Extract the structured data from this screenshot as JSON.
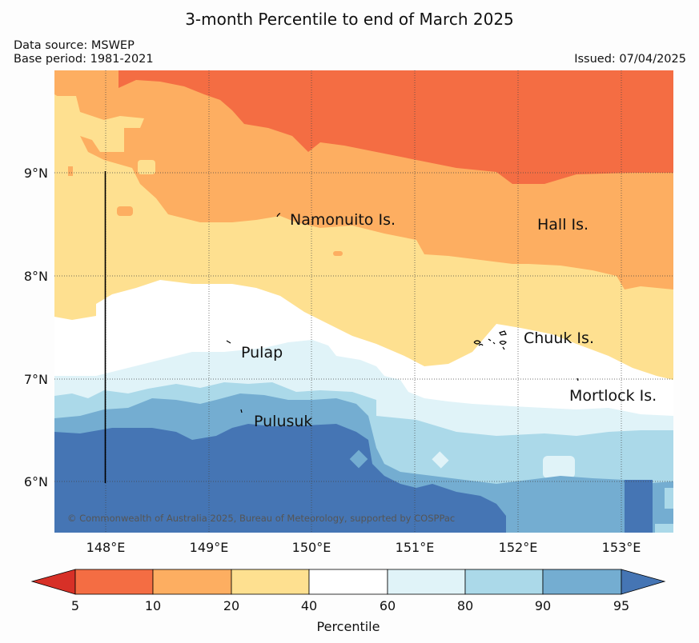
{
  "title": "3-month Percentile to end of March 2025",
  "data_source": "Data source: MSWEP",
  "base_period": "Base period: 1981-2021",
  "issued": "Issued: 07/04/2025",
  "copyright": "© Commonwealth of Australia 2025, Bureau of Meteorology, supported by COSPPac",
  "map": {
    "lon_range": [
      147.5,
      153.5
    ],
    "lat_range": [
      5.5,
      10.0
    ],
    "lat_ticks": [
      "9°N",
      "8°N",
      "7°N",
      "6°N"
    ],
    "lon_ticks": [
      "148°E",
      "149°E",
      "150°E",
      "151°E",
      "152°E",
      "153°E"
    ],
    "places": [
      {
        "name": "Namonuito Is."
      },
      {
        "name": "Hall Is."
      },
      {
        "name": "Chuuk Is."
      },
      {
        "name": "Pulap"
      },
      {
        "name": "Mortlock Is."
      },
      {
        "name": "Pulusuk"
      }
    ]
  },
  "colorbar": {
    "label": "Percentile",
    "ticks": [
      "5",
      "10",
      "20",
      "40",
      "60",
      "80",
      "90",
      "95"
    ],
    "colors": {
      "lt5": "#d73027",
      "p5_10": "#f46d43",
      "p10_20": "#fdae61",
      "p20_40": "#fee090",
      "p40_60": "#ffffff",
      "p60_80": "#e0f3f8",
      "p80_90": "#abd9e9",
      "p90_95": "#74add1",
      "gt95": "#4575b4"
    }
  }
}
